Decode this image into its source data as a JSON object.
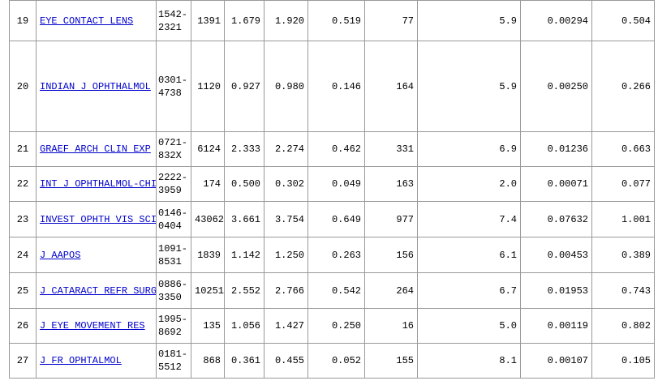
{
  "table": {
    "rows": [
      [
        "19",
        "EYE CONTACT LENS",
        "1542-2321",
        "1391",
        "1.679",
        "1.920",
        "0.519",
        "77",
        "5.9",
        "0.00294",
        "0.504"
      ],
      [
        "20",
        "INDIAN J OPHTHALMOL",
        "0301-4738",
        "1120",
        "0.927",
        "0.980",
        "0.146",
        "164",
        "5.9",
        "0.00250",
        "0.266"
      ],
      [
        "21",
        "GRAEF ARCH CLIN EXP",
        "0721-832X",
        "6124",
        "2.333",
        "2.274",
        "0.462",
        "331",
        "6.9",
        "0.01236",
        "0.663"
      ],
      [
        "22",
        "INT J OPHTHALMOL-CHI",
        "2222-3959",
        "174",
        "0.500",
        "0.302",
        "0.049",
        "163",
        "2.0",
        "0.00071",
        "0.077"
      ],
      [
        "23",
        "INVEST OPHTH VIS SCI",
        "0146-0404",
        "43062",
        "3.661",
        "3.754",
        "0.649",
        "977",
        "7.4",
        "0.07632",
        "1.001"
      ],
      [
        "24",
        "J AAPOS",
        "1091-8531",
        "1839",
        "1.142",
        "1.250",
        "0.263",
        "156",
        "6.1",
        "0.00453",
        "0.389"
      ],
      [
        "25",
        "J CATARACT REFR SURG",
        "0886-3350",
        "10251",
        "2.552",
        "2.766",
        "0.542",
        "264",
        "6.7",
        "0.01953",
        "0.743"
      ],
      [
        "26",
        "J EYE MOVEMENT RES",
        "1995-8692",
        "135",
        "1.056",
        "1.427",
        "0.250",
        "16",
        "5.0",
        "0.00119",
        "0.802"
      ],
      [
        "27",
        "J FR OPHTALMOL",
        "0181-5512",
        "868",
        "0.361",
        "0.455",
        "0.052",
        "155",
        "8.1",
        "0.00107",
        "0.105"
      ]
    ]
  }
}
